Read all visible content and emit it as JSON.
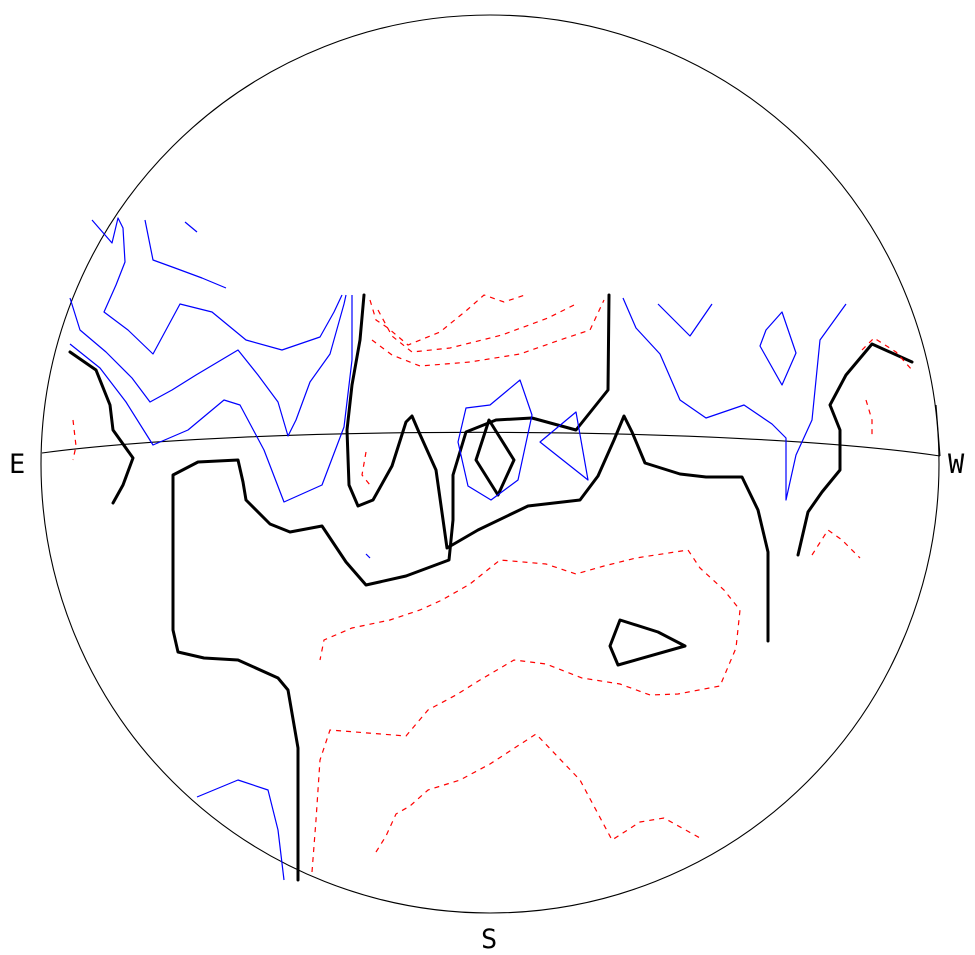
{
  "labels": {
    "east": "E",
    "west": "W",
    "south": "S"
  },
  "colors": {
    "outline": "#000000",
    "zero_contour": "#000000",
    "negative_contour": "#0000ff",
    "positive_contour": "#ff0000"
  }
}
